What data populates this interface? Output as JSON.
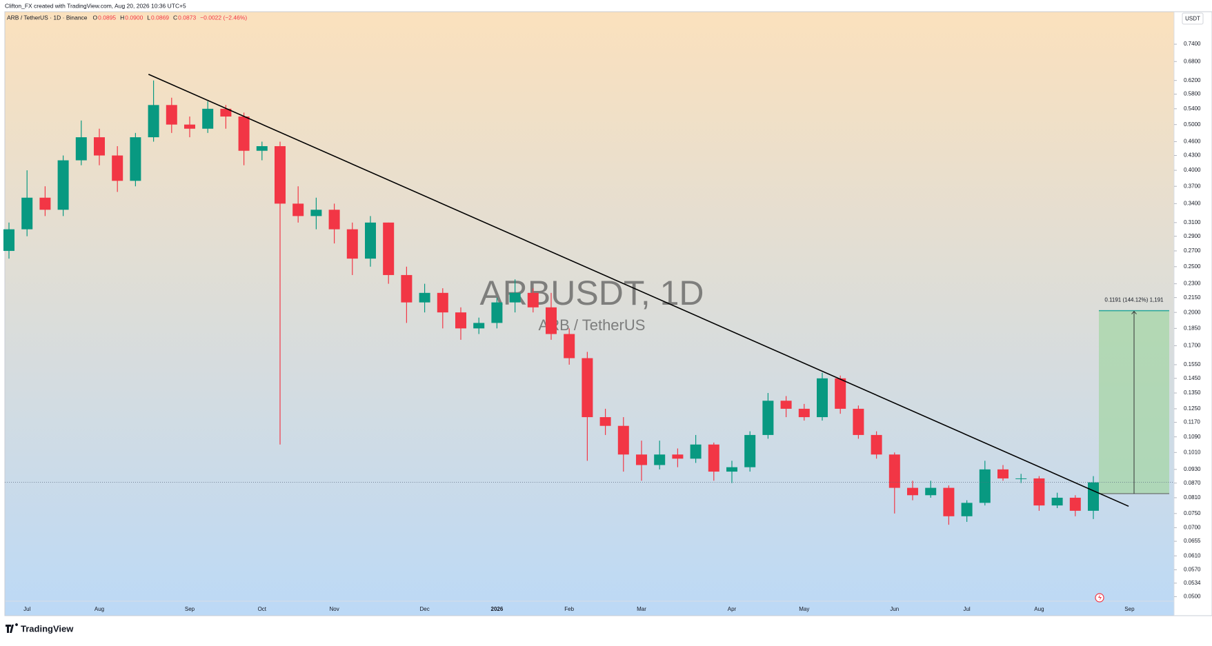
{
  "credit": "Clifton_FX created with TradingView.com, Aug 20, 2026 10:36 UTC+5",
  "brand": "TradingView",
  "chart_data": {
    "type": "candlestick",
    "symbol": "ARB / TetherUS · 1D · Binance",
    "ohlc_legend": [
      {
        "label": "O",
        "value": "0.0895"
      },
      {
        "label": "H",
        "value": "0.0900"
      },
      {
        "label": "L",
        "value": "0.0869"
      },
      {
        "label": "C",
        "value": "0.0873"
      }
    ],
    "change": "−0.0022 (−2.46%)",
    "currency": "USDT",
    "watermark": "ARBUSDT, 1D",
    "watermark_subtitle": "ARB / TetherUS",
    "log_scale": true,
    "up_color": "#089981",
    "down_color": "#f23645",
    "categories": [
      null,
      "Jul",
      null,
      null,
      null,
      "Aug",
      null,
      null,
      null,
      null,
      "Sep",
      null,
      null,
      null,
      "Oct",
      null,
      null,
      null,
      "Nov",
      null,
      null,
      null,
      null,
      "Dec",
      null,
      null,
      null,
      "2026",
      null,
      null,
      null,
      "Feb",
      null,
      null,
      null,
      "Mar",
      null,
      null,
      null,
      null,
      "Apr",
      null,
      null,
      null,
      "May",
      null,
      null,
      null,
      null,
      "Jun",
      null,
      null,
      null,
      "Jul",
      null,
      null,
      null,
      "Aug",
      null,
      null,
      null,
      null,
      "Sep",
      null,
      null
    ],
    "open": [
      0.27,
      0.3,
      0.35,
      0.33,
      0.42,
      0.47,
      0.43,
      0.38,
      0.47,
      0.55,
      0.5,
      0.49,
      0.54,
      0.52,
      0.44,
      0.45,
      0.34,
      0.32,
      0.33,
      0.3,
      0.26,
      0.31,
      0.24,
      0.21,
      0.22,
      0.2,
      0.185,
      0.19,
      0.21,
      0.22,
      0.205,
      0.18,
      0.16,
      0.12,
      0.115,
      0.1,
      0.095,
      0.1,
      0.098,
      0.105,
      0.092,
      0.094,
      0.11,
      0.13,
      0.125,
      0.12,
      0.145,
      0.125,
      0.11,
      0.1,
      0.085,
      0.082,
      0.085,
      0.074,
      0.079,
      0.093,
      0.089,
      0.089,
      0.078,
      0.081,
      0.076,
      null,
      null,
      null,
      null
    ],
    "high": [
      0.31,
      0.4,
      0.37,
      0.43,
      0.51,
      0.49,
      0.45,
      0.48,
      0.62,
      0.57,
      0.52,
      0.56,
      0.55,
      0.53,
      0.46,
      0.46,
      0.37,
      0.35,
      0.34,
      0.31,
      0.32,
      0.31,
      0.25,
      0.23,
      0.225,
      0.205,
      0.195,
      0.215,
      0.235,
      0.225,
      0.22,
      0.185,
      0.165,
      0.125,
      0.12,
      0.107,
      0.107,
      0.103,
      0.11,
      0.106,
      0.097,
      0.112,
      0.135,
      0.133,
      0.128,
      0.149,
      0.147,
      0.127,
      0.112,
      0.101,
      0.088,
      0.088,
      0.086,
      0.08,
      0.097,
      0.095,
      0.091,
      0.09,
      0.083,
      0.082,
      0.09,
      null,
      null,
      null,
      null
    ],
    "low": [
      0.26,
      0.29,
      0.32,
      0.32,
      0.41,
      0.41,
      0.36,
      0.37,
      0.46,
      0.48,
      0.47,
      0.48,
      0.49,
      0.41,
      0.42,
      0.105,
      0.31,
      0.3,
      0.28,
      0.24,
      0.25,
      0.23,
      0.19,
      0.2,
      0.185,
      0.175,
      0.18,
      0.185,
      0.2,
      0.2,
      0.175,
      0.155,
      0.097,
      0.11,
      0.092,
      0.088,
      0.093,
      0.094,
      0.096,
      0.088,
      0.087,
      0.092,
      0.108,
      0.12,
      0.118,
      0.118,
      0.122,
      0.108,
      0.098,
      0.075,
      0.08,
      0.081,
      0.071,
      0.072,
      0.078,
      0.088,
      0.087,
      0.076,
      0.077,
      0.074,
      0.073,
      null,
      null,
      null,
      null
    ],
    "close": [
      0.3,
      0.35,
      0.33,
      0.42,
      0.47,
      0.43,
      0.38,
      0.47,
      0.55,
      0.5,
      0.49,
      0.54,
      0.52,
      0.44,
      0.45,
      0.34,
      0.32,
      0.33,
      0.3,
      0.26,
      0.31,
      0.24,
      0.21,
      0.22,
      0.2,
      0.185,
      0.19,
      0.21,
      0.22,
      0.205,
      0.18,
      0.16,
      0.12,
      0.115,
      0.1,
      0.095,
      0.1,
      0.098,
      0.105,
      0.092,
      0.094,
      0.11,
      0.13,
      0.125,
      0.12,
      0.145,
      0.125,
      0.11,
      0.1,
      0.085,
      0.082,
      0.085,
      0.074,
      0.079,
      0.093,
      0.089,
      0.089,
      0.078,
      0.081,
      0.076,
      0.0873,
      null,
      null,
      null,
      null
    ],
    "ylim": [
      0.0489,
      0.867
    ],
    "yticks": [
      {
        "value": 0.74,
        "label": "0.7400"
      },
      {
        "value": 0.68,
        "label": "0.6800"
      },
      {
        "value": 0.62,
        "label": "0.6200"
      },
      {
        "value": 0.58,
        "label": "0.5800"
      },
      {
        "value": 0.54,
        "label": "0.5400"
      },
      {
        "value": 0.5,
        "label": "0.5000"
      },
      {
        "value": 0.46,
        "label": "0.4600"
      },
      {
        "value": 0.43,
        "label": "0.4300"
      },
      {
        "value": 0.4,
        "label": "0.4000"
      },
      {
        "value": 0.37,
        "label": "0.3700"
      },
      {
        "value": 0.34,
        "label": "0.3400"
      },
      {
        "value": 0.31,
        "label": "0.3100"
      },
      {
        "value": 0.29,
        "label": "0.2900"
      },
      {
        "value": 0.27,
        "label": "0.2700"
      },
      {
        "value": 0.25,
        "label": "0.2500"
      },
      {
        "value": 0.23,
        "label": "0.2300"
      },
      {
        "value": 0.215,
        "label": "0.2150"
      },
      {
        "value": 0.2,
        "label": "0.2000"
      },
      {
        "value": 0.185,
        "label": "0.1850"
      },
      {
        "value": 0.17,
        "label": "0.1700"
      },
      {
        "value": 0.155,
        "label": "0.1550"
      },
      {
        "value": 0.145,
        "label": "0.1450"
      },
      {
        "value": 0.135,
        "label": "0.1350"
      },
      {
        "value": 0.125,
        "label": "0.1250"
      },
      {
        "value": 0.117,
        "label": "0.1170"
      },
      {
        "value": 0.109,
        "label": "0.1090"
      },
      {
        "value": 0.101,
        "label": "0.1010"
      },
      {
        "value": 0.093,
        "label": "0.0930"
      },
      {
        "value": 0.087,
        "label": "0.0870"
      },
      {
        "value": 0.081,
        "label": "0.0810"
      },
      {
        "value": 0.075,
        "label": "0.0750"
      },
      {
        "value": 0.07,
        "label": "0.0700"
      },
      {
        "value": 0.0655,
        "label": "0.0655"
      },
      {
        "value": 0.061,
        "label": "0.0610"
      },
      {
        "value": 0.057,
        "label": "0.0570"
      },
      {
        "value": 0.0534,
        "label": "0.0534"
      },
      {
        "value": 0.05,
        "label": "0.0500"
      }
    ],
    "trendline": {
      "values": [
        0.639,
        0.0777
      ],
      "color": "#000000"
    },
    "position": {
      "entry": 0.08264,
      "target": 0.20174,
      "label": "0.1191 (144.12%) 1,191",
      "color": "#a5d6a7"
    }
  }
}
